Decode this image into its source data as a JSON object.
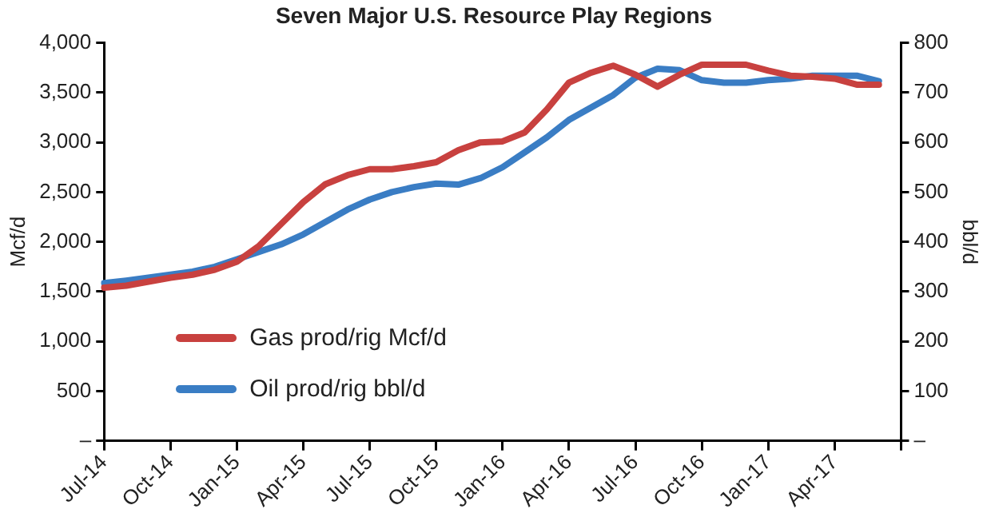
{
  "chart_data": {
    "type": "line",
    "title": "Seven Major U.S. Resource Play Regions",
    "ylabel": "Mcf/d",
    "y2label": "bbl/d",
    "categories": [
      "Jul-14",
      null,
      null,
      "Oct-14",
      null,
      null,
      "Jan-15",
      null,
      null,
      "Apr-15",
      null,
      null,
      "Jul-15",
      null,
      null,
      "Oct-15",
      null,
      null,
      "Jan-16",
      null,
      null,
      "Apr-16",
      null,
      null,
      "Jul-16",
      null,
      null,
      "Oct-16",
      null,
      null,
      "Jan-17",
      null,
      null,
      "Apr-17",
      null,
      null,
      null
    ],
    "series": [
      {
        "name": "Gas prod/rig Mcf/d",
        "color": "#c8413f",
        "values": [
          1540,
          1560,
          1600,
          1640,
          1670,
          1720,
          1800,
          1960,
          2180,
          2400,
          2580,
          2670,
          2730,
          2730,
          2760,
          2800,
          2920,
          3000,
          3010,
          3100,
          3330,
          3600,
          3700,
          3770,
          3680,
          3560,
          3680,
          3780,
          3780,
          3780,
          3720,
          3670,
          3660,
          3640,
          3580,
          3580,
          null
        ]
      },
      {
        "name": "Oil prod/rig bbl/d",
        "color": "#3a7dc4",
        "axis": "y2",
        "values": [
          317,
          322,
          328,
          334,
          340,
          350,
          365,
          380,
          395,
          415,
          440,
          465,
          485,
          500,
          510,
          517,
          515,
          528,
          550,
          580,
          610,
          645,
          670,
          695,
          730,
          748,
          745,
          725,
          720,
          720,
          725,
          728,
          734,
          734,
          734,
          723,
          null
        ]
      }
    ],
    "ylim": [
      0,
      4000
    ],
    "yticks": [
      {
        "value": 0,
        "label": "–"
      },
      500,
      {
        "value": 1000,
        "label": "1,000"
      },
      {
        "value": 1500,
        "label": "1,500"
      },
      {
        "value": 2000,
        "label": "2,000"
      },
      {
        "value": 2500,
        "label": "2,500"
      },
      {
        "value": 3000,
        "label": "3,000"
      },
      {
        "value": 3500,
        "label": "3,500"
      },
      {
        "value": 4000,
        "label": "4,000"
      }
    ],
    "y2lim": [
      0,
      800
    ],
    "y2ticks": [
      {
        "value": 0,
        "label": "–"
      },
      100,
      200,
      300,
      400,
      500,
      600,
      700,
      800
    ],
    "legend": "bottom left"
  }
}
